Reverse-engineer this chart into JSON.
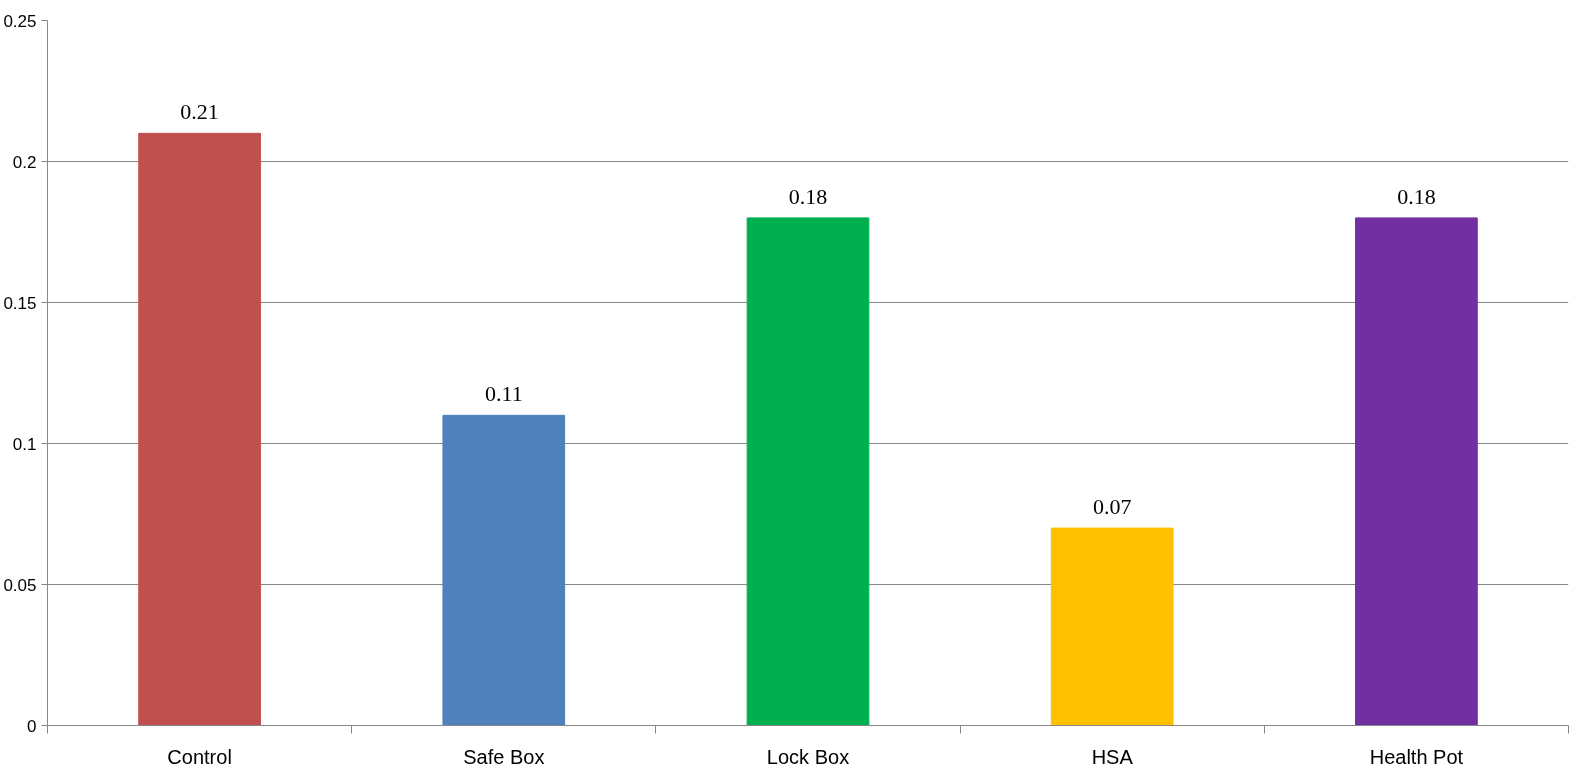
{
  "chart_data": {
    "type": "bar",
    "categories": [
      "Control",
      "Safe Box",
      "Lock Box",
      "HSA",
      "Health Pot"
    ],
    "values": [
      0.21,
      0.11,
      0.18,
      0.07,
      0.18
    ],
    "colors": [
      "#c0504d",
      "#4f81bd",
      "#00b050",
      "#ffc000",
      "#7030a0"
    ],
    "ylim": [
      0,
      0.25
    ],
    "yticks": [
      0,
      0.05,
      0.1,
      0.15,
      0.2,
      0.25
    ],
    "grid": "y",
    "data_labels": true
  }
}
